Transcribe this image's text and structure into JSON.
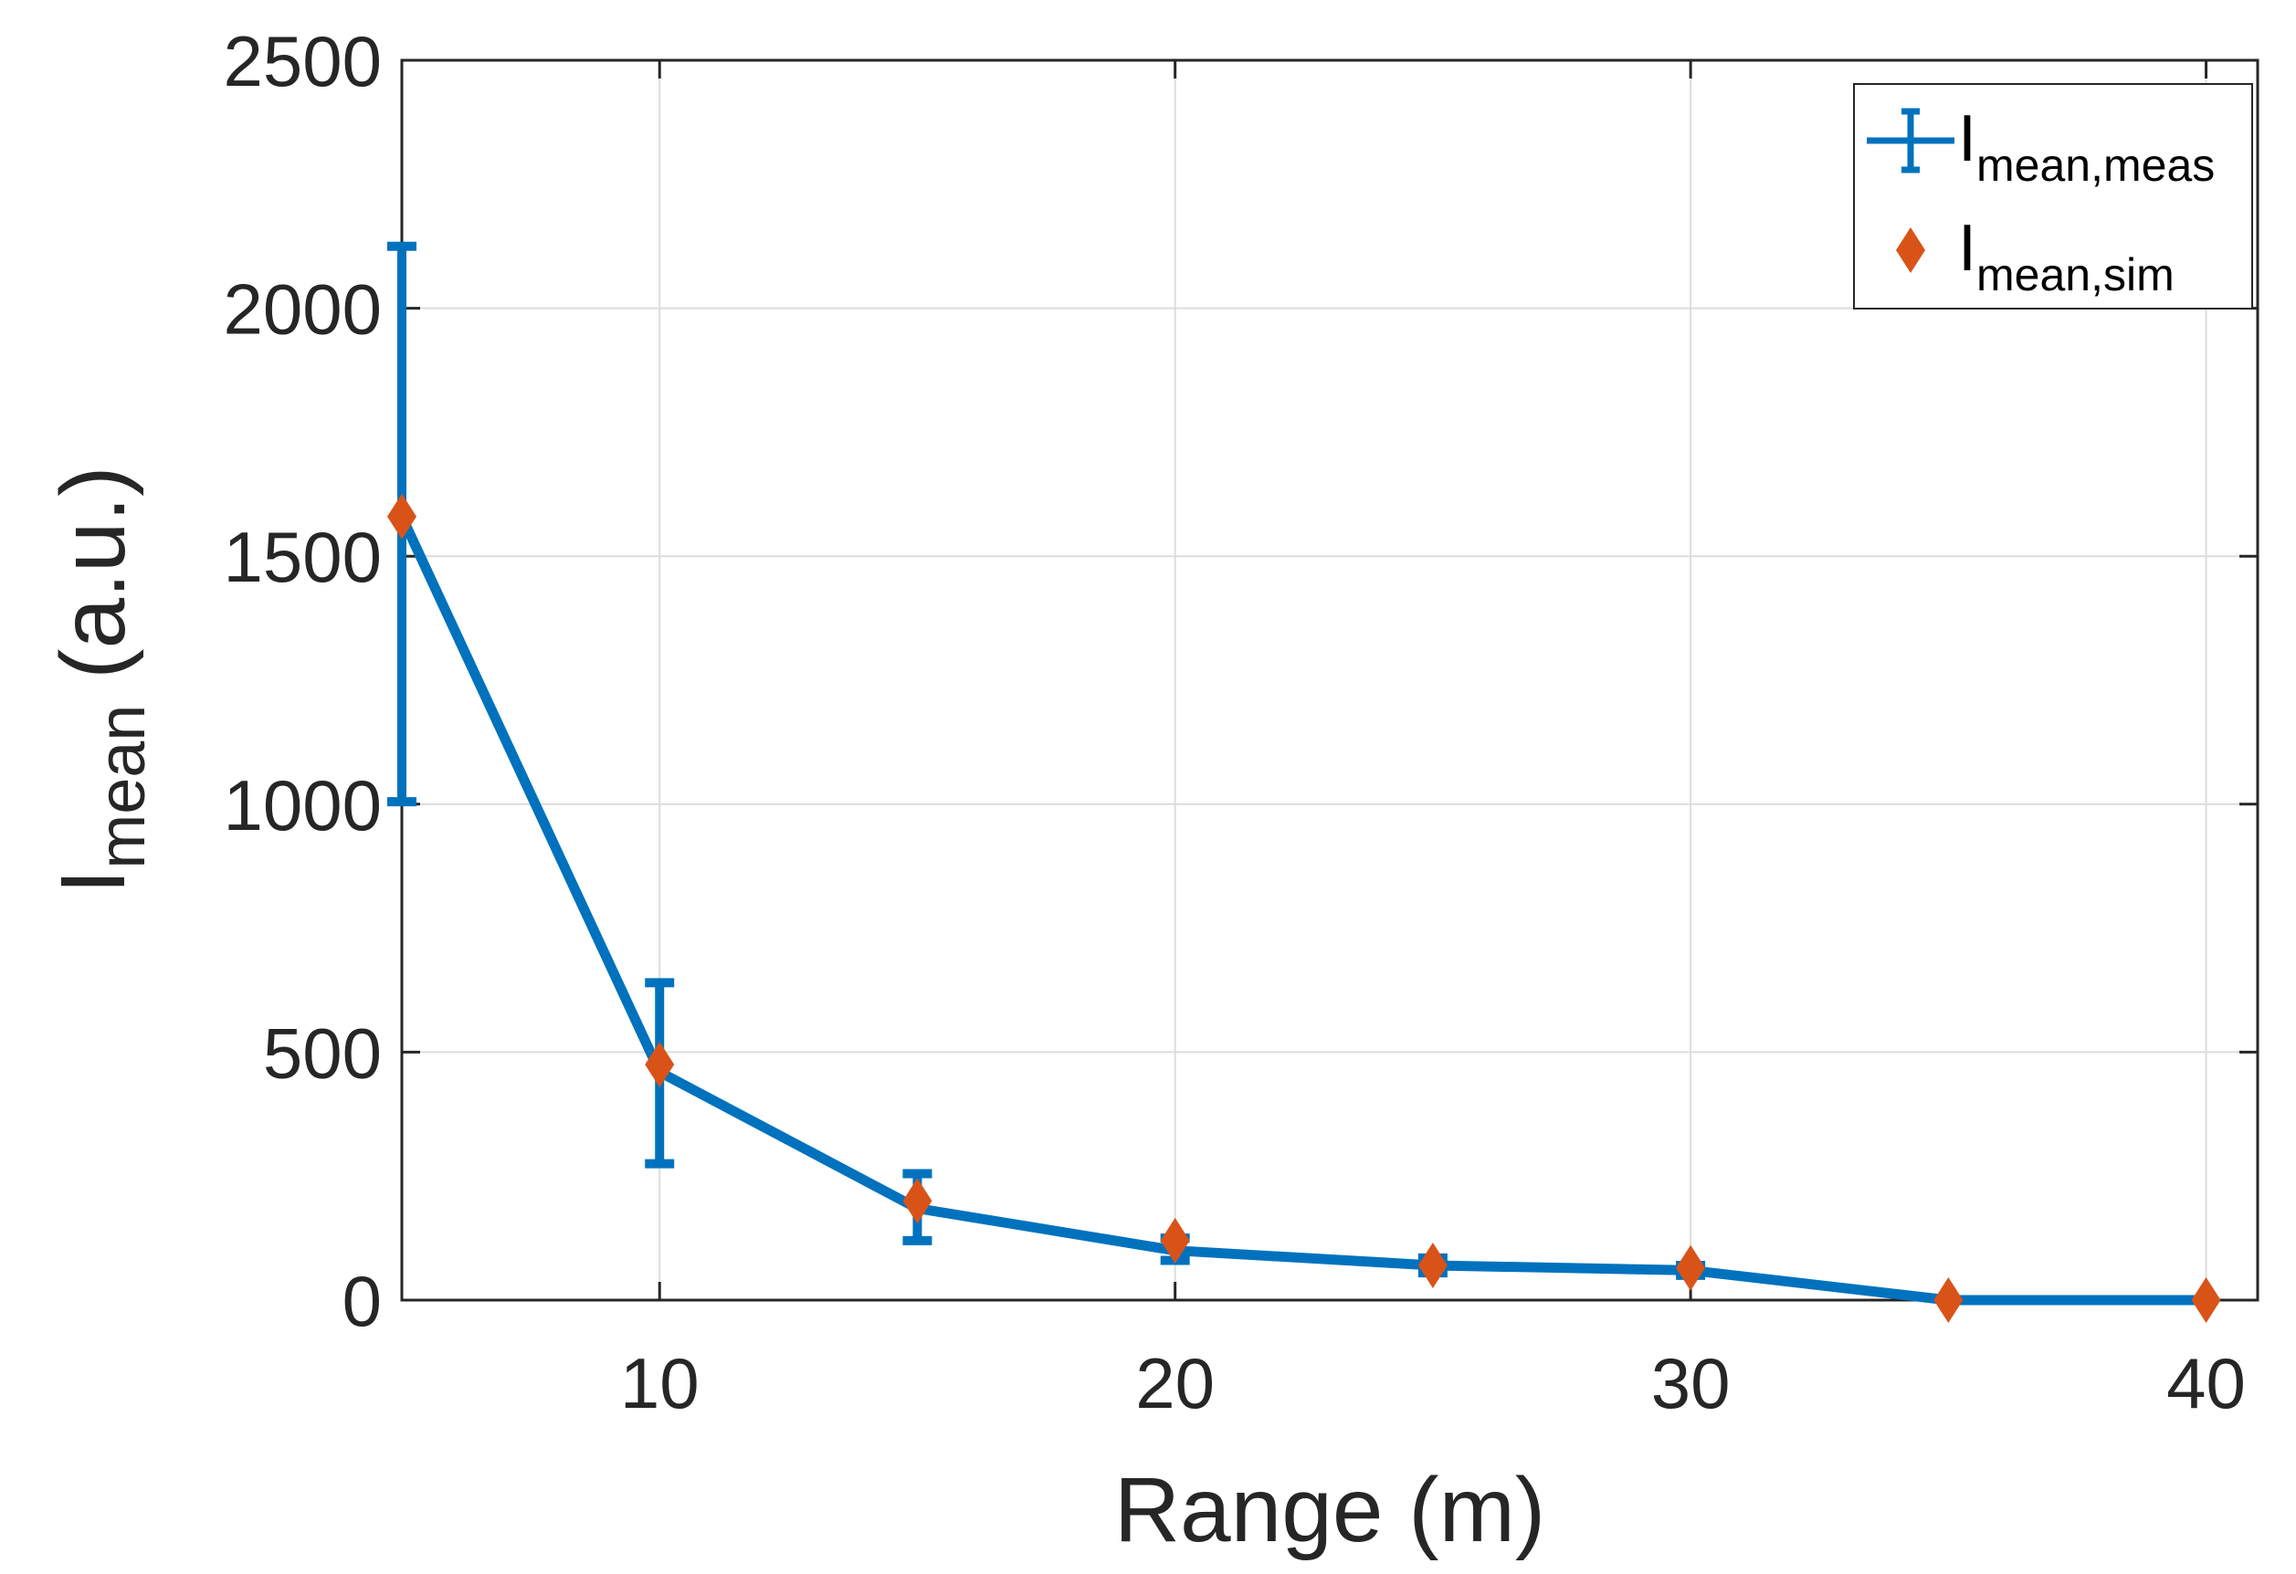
{
  "chart_data": {
    "type": "line",
    "xlabel": "Range (m)",
    "ylabel_main": "I",
    "ylabel_sub": "mean",
    "ylabel_suffix": " (a.u.)",
    "xlim": [
      5,
      41
    ],
    "ylim": [
      0,
      2500
    ],
    "xticks": [
      10,
      20,
      30,
      40
    ],
    "xtick_labels": [
      "10",
      "20",
      "30",
      "40"
    ],
    "yticks": [
      0,
      500,
      1000,
      1500,
      2000,
      2500
    ],
    "ytick_labels": [
      "0",
      "500",
      "1000",
      "1500",
      "2000",
      "2500"
    ],
    "grid": true,
    "legend_position": "top-right",
    "series": [
      {
        "name": "I_mean,meas",
        "legend_main": "I",
        "legend_sub": "mean,meas",
        "color": "#0072BD",
        "style": "line-errorbar",
        "x": [
          5,
          10,
          15,
          20,
          25,
          30,
          35,
          40
        ],
        "y": [
          1580,
          460,
          185,
          100,
          70,
          60,
          0,
          0
        ],
        "err_low": [
          1005,
          275,
          120,
          80,
          55,
          50,
          0,
          0
        ],
        "err_high": [
          2125,
          640,
          255,
          125,
          85,
          70,
          0,
          0
        ]
      },
      {
        "name": "I_mean,sim",
        "legend_main": "I",
        "legend_sub": "mean,sim",
        "color": "#D95319",
        "style": "diamond-markers",
        "x": [
          5,
          10,
          15,
          20,
          25,
          30,
          35,
          40
        ],
        "y": [
          1580,
          475,
          200,
          120,
          70,
          65,
          0,
          0
        ]
      }
    ]
  }
}
